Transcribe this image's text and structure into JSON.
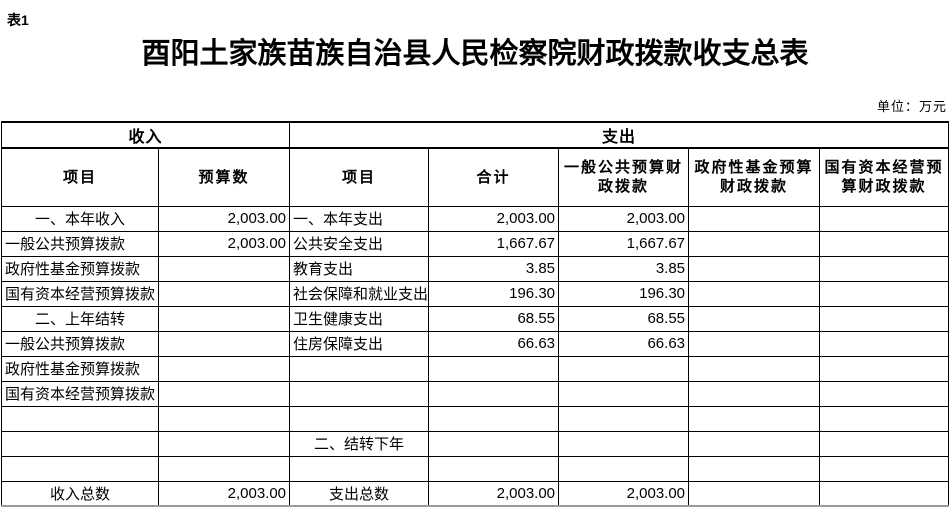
{
  "page": {
    "tag": "表1",
    "title": "酉阳土家族苗族自治县人民检察院财政拨款收支总表",
    "unit_note": "单位：万元"
  },
  "table": {
    "group_headers": {
      "income": "收入",
      "expense": "支出"
    },
    "columns": [
      "项目",
      "预算数",
      "项目",
      "合计",
      "一般公共预算财\n政拨款",
      "政府性基金预算\n财政拨款",
      "国有资本经营预\n算财政拨款"
    ],
    "rows": [
      {
        "income_item": "一、本年收入",
        "income_type": "section",
        "income_budget": "2,003.00",
        "expense_item": "一、本年支出",
        "expense_type": "detail",
        "expense_total": "2,003.00",
        "expense_general_budget": "2,003.00",
        "expense_gov_fund": "",
        "expense_state_capital": ""
      },
      {
        "income_item": "一般公共预算拨款",
        "income_type": "detail",
        "income_budget": "2,003.00",
        "expense_item": "公共安全支出",
        "expense_type": "detail",
        "expense_total": "1,667.67",
        "expense_general_budget": "1,667.67",
        "expense_gov_fund": "",
        "expense_state_capital": ""
      },
      {
        "income_item": "政府性基金预算拨款",
        "income_type": "detail",
        "income_budget": "",
        "expense_item": "教育支出",
        "expense_type": "detail",
        "expense_total": "3.85",
        "expense_general_budget": "3.85",
        "expense_gov_fund": "",
        "expense_state_capital": ""
      },
      {
        "income_item": "国有资本经营预算拨款",
        "income_type": "detail",
        "income_budget": "",
        "expense_item": "社会保障和就业支出",
        "expense_type": "detail",
        "expense_total": "196.30",
        "expense_general_budget": "196.30",
        "expense_gov_fund": "",
        "expense_state_capital": ""
      },
      {
        "income_item": "二、上年结转",
        "income_type": "section",
        "income_budget": "",
        "expense_item": "卫生健康支出",
        "expense_type": "detail",
        "expense_total": "68.55",
        "expense_general_budget": "68.55",
        "expense_gov_fund": "",
        "expense_state_capital": ""
      },
      {
        "income_item": "一般公共预算拨款",
        "income_type": "detail",
        "income_budget": "",
        "expense_item": "住房保障支出",
        "expense_type": "detail",
        "expense_total": "66.63",
        "expense_general_budget": "66.63",
        "expense_gov_fund": "",
        "expense_state_capital": ""
      },
      {
        "income_item": "政府性基金预算拨款",
        "income_type": "detail",
        "income_budget": "",
        "expense_item": "",
        "expense_type": "detail",
        "expense_total": "",
        "expense_general_budget": "",
        "expense_gov_fund": "",
        "expense_state_capital": ""
      },
      {
        "income_item": "国有资本经营预算拨款",
        "income_type": "detail",
        "income_budget": "",
        "expense_item": "",
        "expense_type": "detail",
        "expense_total": "",
        "expense_general_budget": "",
        "expense_gov_fund": "",
        "expense_state_capital": ""
      },
      {
        "income_item": "",
        "income_type": "detail",
        "income_budget": "",
        "expense_item": "",
        "expense_type": "detail",
        "expense_total": "",
        "expense_general_budget": "",
        "expense_gov_fund": "",
        "expense_state_capital": ""
      },
      {
        "income_item": "",
        "income_type": "detail",
        "income_budget": "",
        "expense_item": "二、结转下年",
        "expense_type": "section",
        "expense_total": "",
        "expense_general_budget": "",
        "expense_gov_fund": "",
        "expense_state_capital": ""
      },
      {
        "income_item": "",
        "income_type": "detail",
        "income_budget": "",
        "expense_item": "",
        "expense_type": "detail",
        "expense_total": "",
        "expense_general_budget": "",
        "expense_gov_fund": "",
        "expense_state_capital": ""
      },
      {
        "income_item": "收入总数",
        "income_type": "total",
        "income_budget": "2,003.00",
        "expense_item": "支出总数",
        "expense_type": "total",
        "expense_total": "2,003.00",
        "expense_general_budget": "2,003.00",
        "expense_gov_fund": "",
        "expense_state_capital": ""
      }
    ]
  }
}
